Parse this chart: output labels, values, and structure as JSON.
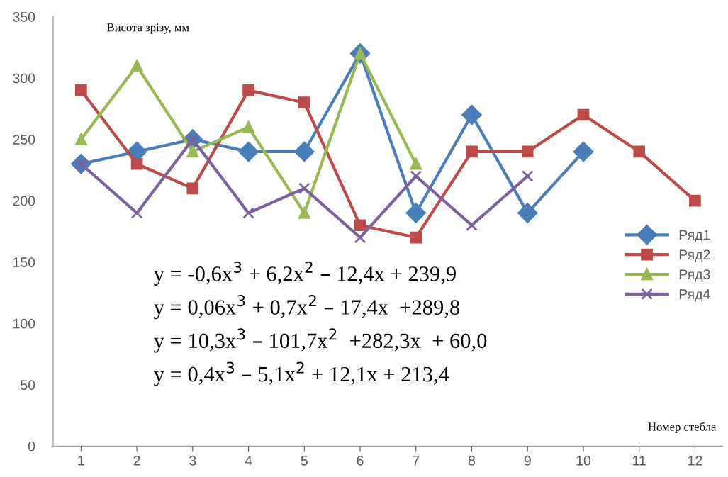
{
  "chart_data": {
    "type": "line",
    "xlabel": "Номер стебла",
    "ylabel": "Висота зрізу, мм",
    "categories": [
      "1",
      "2",
      "3",
      "4",
      "5",
      "6",
      "7",
      "8",
      "9",
      "10",
      "11",
      "12"
    ],
    "ylim": [
      0,
      350
    ],
    "yticks": [
      0,
      50,
      100,
      150,
      200,
      250,
      300,
      350
    ],
    "grid": false,
    "legend": "right",
    "line_style": "solid",
    "series": [
      {
        "name": "Ряд1",
        "color": "#4a7ebb",
        "marker": "diamond",
        "values": [
          230,
          240,
          250,
          240,
          240,
          320,
          190,
          270,
          190,
          240,
          null,
          null
        ]
      },
      {
        "name": "Ряд2",
        "color": "#be4b48",
        "marker": "square",
        "values": [
          290,
          230,
          210,
          290,
          280,
          180,
          170,
          240,
          240,
          270,
          240,
          200
        ]
      },
      {
        "name": "Ряд3",
        "color": "#98b954",
        "marker": "triangle",
        "values": [
          250,
          310,
          240,
          260,
          190,
          320,
          230,
          null,
          null,
          null,
          null,
          null
        ]
      },
      {
        "name": "Ряд4",
        "color": "#7d60a0",
        "marker": "cross",
        "values": [
          230,
          190,
          250,
          190,
          210,
          170,
          220,
          180,
          220,
          null,
          null,
          null
        ]
      }
    ],
    "annotations": [
      "y = -0,6x$^{3}$ + 6,2x$^{2}$ – 12,4x + 239,9",
      "y = 0,06x$^{3}$ + 0,7x$^{2}$ – 17,4x  +289,8",
      "y = 10,3x$^{3}$ – 101,7x$^{2}$  +282,3x  + 60,0",
      "y = 0,4x$^{3}$ – 5,1x$^{2}$ + 12,1x + 213,4"
    ]
  }
}
